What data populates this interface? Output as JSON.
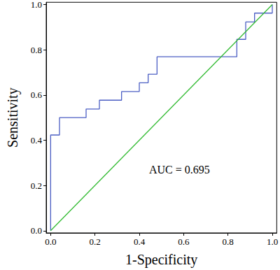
{
  "chart_data": {
    "type": "line",
    "xlabel": "1-Specificity",
    "ylabel": "Sensitivity",
    "xlim": [
      -0.02,
      1.02
    ],
    "ylim": [
      -0.01,
      1.01
    ],
    "xticks": [
      {
        "value": 0,
        "label": "0.0"
      },
      0.2,
      0.4,
      0.6,
      0.8,
      {
        "value": 1,
        "label": "1.0"
      }
    ],
    "yticks": [
      {
        "value": 0,
        "label": "0.0"
      },
      0.2,
      0.4,
      0.6,
      0.8,
      {
        "value": 1,
        "label": "1.0"
      }
    ],
    "grid": false,
    "series": [
      {
        "color": "#4c5fc4",
        "line_style": "solid",
        "x": [
          0,
          0,
          0.04,
          0.04,
          0.16,
          0.16,
          0.22,
          0.22,
          0.32,
          0.32,
          0.4,
          0.4,
          0.44,
          0.44,
          0.48,
          0.48,
          0.84,
          0.84,
          0.88,
          0.88,
          0.92,
          0.92,
          1.0,
          1.0
        ],
        "values": [
          0,
          0.423,
          0.423,
          0.5,
          0.5,
          0.538,
          0.538,
          0.577,
          0.577,
          0.615,
          0.615,
          0.654,
          0.654,
          0.692,
          0.692,
          0.769,
          0.769,
          0.846,
          0.846,
          0.923,
          0.923,
          0.962,
          0.962,
          1.0
        ]
      },
      {
        "color": "#33bb33",
        "line_style": "solid",
        "x": [
          0,
          1
        ],
        "values": [
          0,
          1
        ]
      }
    ],
    "annotations": [
      "AUC = 0.695"
    ]
  }
}
